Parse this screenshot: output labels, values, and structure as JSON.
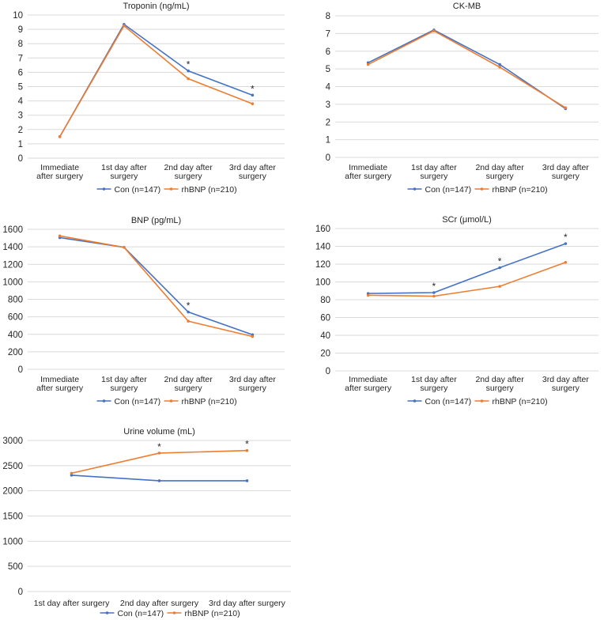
{
  "colors": {
    "con": "#4472c4",
    "rhbnp": "#ed7d31",
    "grid": "#d9d9d9",
    "text": "#262626"
  },
  "chart_data": [
    {
      "type": "line",
      "title": "Troponin (ng/mL)",
      "categories": [
        "Immediate after surgery",
        "1st day after surgery",
        "2nd day after surgery",
        "3rd day after surgery"
      ],
      "category_lines": [
        [
          "Immediate",
          "after surgery"
        ],
        [
          "1st day after",
          "surgery"
        ],
        [
          "2nd day after",
          "surgery"
        ],
        [
          "3rd day after",
          "surgery"
        ]
      ],
      "ylim": [
        0,
        10
      ],
      "yticks": [
        0,
        1,
        2,
        3,
        4,
        5,
        6,
        7,
        8,
        9,
        10
      ],
      "series": [
        {
          "name": "Con (n=147)",
          "values": [
            1.5,
            9.35,
            6.1,
            4.4
          ]
        },
        {
          "name": "rhBNP (n=210)",
          "values": [
            1.5,
            9.25,
            5.55,
            3.8
          ]
        }
      ],
      "significance": [
        null,
        null,
        "*",
        "*"
      ],
      "legend": "bottom"
    },
    {
      "type": "line",
      "title": "CK-MB",
      "categories": [
        "Immediate after surgery",
        "1st day after surgery",
        "2nd day after surgery",
        "3rd day after surgery"
      ],
      "category_lines": [
        [
          "Immediate",
          "after surgery"
        ],
        [
          "1st day after",
          "surgery"
        ],
        [
          "2nd day after",
          "surgery"
        ],
        [
          "3rd day after",
          "surgery"
        ]
      ],
      "ylim": [
        0,
        8
      ],
      "yticks": [
        0,
        1,
        2,
        3,
        4,
        5,
        6,
        7,
        8
      ],
      "series": [
        {
          "name": "Con (n=147)",
          "values": [
            5.35,
            7.2,
            5.25,
            2.75
          ]
        },
        {
          "name": "rhBNP (n=210)",
          "values": [
            5.25,
            7.15,
            5.1,
            2.8
          ]
        }
      ],
      "significance": [
        null,
        null,
        null,
        null
      ],
      "legend": "bottom"
    },
    {
      "type": "line",
      "title": "BNP (pg/mL)",
      "categories": [
        "Immediate after surgery",
        "1st day after surgery",
        "2nd day after surgery",
        "3rd day after surgery"
      ],
      "category_lines": [
        [
          "Immediate",
          "after surgery"
        ],
        [
          "1st day after",
          "surgery"
        ],
        [
          "2nd day after",
          "surgery"
        ],
        [
          "3rd day after",
          "surgery"
        ]
      ],
      "ylim": [
        0,
        1600
      ],
      "yticks": [
        0,
        200,
        400,
        600,
        800,
        1000,
        1200,
        1400,
        1600
      ],
      "series": [
        {
          "name": "Con (n=147)",
          "values": [
            1505,
            1395,
            655,
            395
          ]
        },
        {
          "name": "rhBNP (n=210)",
          "values": [
            1525,
            1395,
            550,
            375
          ]
        }
      ],
      "significance": [
        null,
        null,
        "*",
        null
      ],
      "legend": "bottom"
    },
    {
      "type": "line",
      "title": "SCr (μmol/L)",
      "categories": [
        "Immediate after surgery",
        "1st day after surgery",
        "2nd day after surgery",
        "3rd day after surgery"
      ],
      "category_lines": [
        [
          "Immediate",
          "after surgery"
        ],
        [
          "1st day after",
          "surgery"
        ],
        [
          "2nd day after",
          "surgery"
        ],
        [
          "3rd day after",
          "surgery"
        ]
      ],
      "ylim": [
        0,
        160
      ],
      "yticks": [
        0,
        20,
        40,
        60,
        80,
        100,
        120,
        140,
        160
      ],
      "series": [
        {
          "name": "Con (n=147)",
          "values": [
            87,
            88,
            116,
            143
          ]
        },
        {
          "name": "rhBNP (n=210)",
          "values": [
            85,
            84,
            95,
            122
          ]
        }
      ],
      "significance": [
        null,
        "*",
        "*",
        "*"
      ],
      "legend": "bottom"
    },
    {
      "type": "line",
      "title": "Urine volume (mL)",
      "categories": [
        "1st day after surgery",
        "2nd day after surgery",
        "3rd day after surgery"
      ],
      "category_lines": [
        [
          "1st day after surgery"
        ],
        [
          "2nd day after surgery"
        ],
        [
          "3rd day after surgery"
        ]
      ],
      "ylim": [
        0,
        3000
      ],
      "yticks": [
        0,
        500,
        1000,
        1500,
        2000,
        2500,
        3000
      ],
      "series": [
        {
          "name": "Con (n=147)",
          "values": [
            2310,
            2200,
            2200
          ]
        },
        {
          "name": "rhBNP (n=210)",
          "values": [
            2350,
            2750,
            2800
          ]
        }
      ],
      "significance": [
        null,
        "*",
        "*"
      ],
      "legend": "bottom"
    }
  ]
}
